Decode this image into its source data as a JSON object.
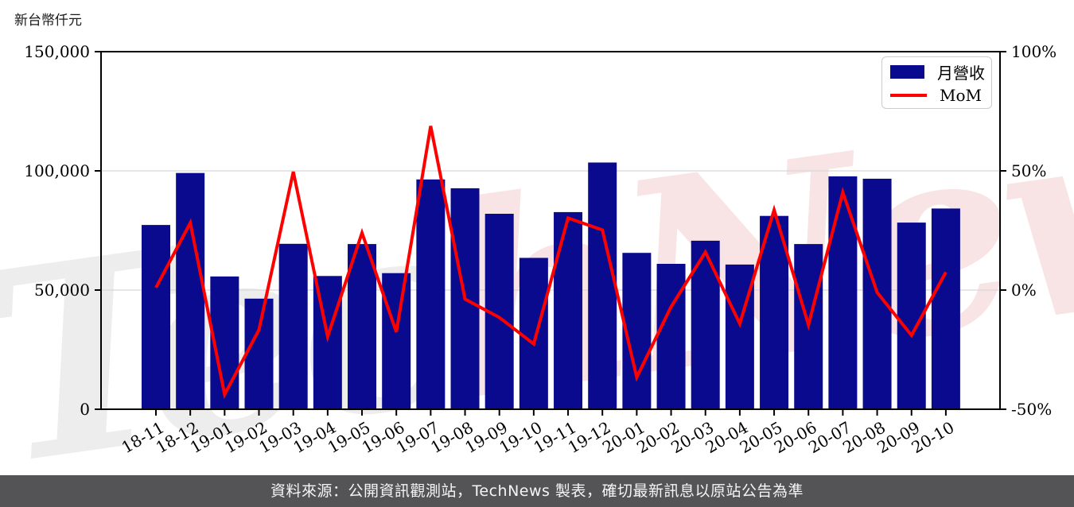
{
  "chart": {
    "title_left": "新台幣仟元",
    "y_left_axis": {
      "tick_labels": [
        "0",
        "50,000",
        "100,000",
        "150,000"
      ],
      "tick_values": [
        0,
        50000,
        100000,
        150000
      ],
      "grid_values": [
        50000,
        100000
      ]
    },
    "y_right_axis": {
      "tick_labels": [
        "-50%",
        "0%",
        "50%",
        "100%"
      ],
      "tick_values": [
        -50,
        0,
        50,
        100
      ]
    },
    "legend": [
      {
        "label": "月營收",
        "type": "bar",
        "color": "#0a0a8e"
      },
      {
        "label": "MoM",
        "type": "line",
        "color": "#ff0000"
      }
    ],
    "watermark": {
      "part1": "Tec",
      "part2": "hNews",
      "color1": "#ededed",
      "color2": "#f8e4e4"
    }
  },
  "chart_data": {
    "type": "bar",
    "title": "月營收與 MoM",
    "categories": [
      "18-11",
      "18-12",
      "19-01",
      "19-02",
      "19-03",
      "19-04",
      "19-05",
      "19-06",
      "19-07",
      "19-08",
      "19-09",
      "19-10",
      "19-11",
      "19-12",
      "20-01",
      "20-02",
      "20-03",
      "20-04",
      "20-05",
      "20-06",
      "20-07",
      "20-08",
      "20-09",
      "20-10"
    ],
    "series": [
      {
        "name": "月營收",
        "type": "bar",
        "axis": "left",
        "unit": "新台幣仟元",
        "color": "#0a0a8e",
        "values": [
          77300,
          99100,
          55700,
          46400,
          69400,
          55900,
          69300,
          57100,
          96400,
          92700,
          82000,
          63500,
          82700,
          103500,
          65600,
          61000,
          70700,
          60700,
          81100,
          69300,
          97700,
          96700,
          78300,
          84200
        ]
      },
      {
        "name": "MoM",
        "type": "line",
        "axis": "right",
        "unit": "%",
        "color": "#ff0000",
        "values": [
          1.0,
          28.2,
          -43.8,
          -16.7,
          49.6,
          -19.5,
          24.0,
          -17.6,
          68.8,
          -3.8,
          -11.5,
          -22.6,
          30.2,
          25.2,
          -36.6,
          -7.0,
          15.9,
          -14.1,
          33.6,
          -14.6,
          41.0,
          -1.0,
          -19.0,
          7.5
        ]
      }
    ],
    "ylabel_left": "新台幣仟元",
    "ylabel_right": "%",
    "ylim_left": [
      0,
      150000
    ],
    "ylim_right": [
      -50,
      100
    ],
    "grid": "horizontal",
    "legend_position": "upper right"
  },
  "footer": {
    "text": "資料來源：公開資訊觀測站，TechNews 製表，確切最新訊息以原站公告為準"
  },
  "colors": {
    "bar": "#0a0a8e",
    "line": "#ff0000",
    "grid": "#d8d8d8",
    "spine": "#000000",
    "footer_bg": "#545456",
    "watermark_gray": "#ededed",
    "watermark_pink": "#f8e4e4"
  }
}
